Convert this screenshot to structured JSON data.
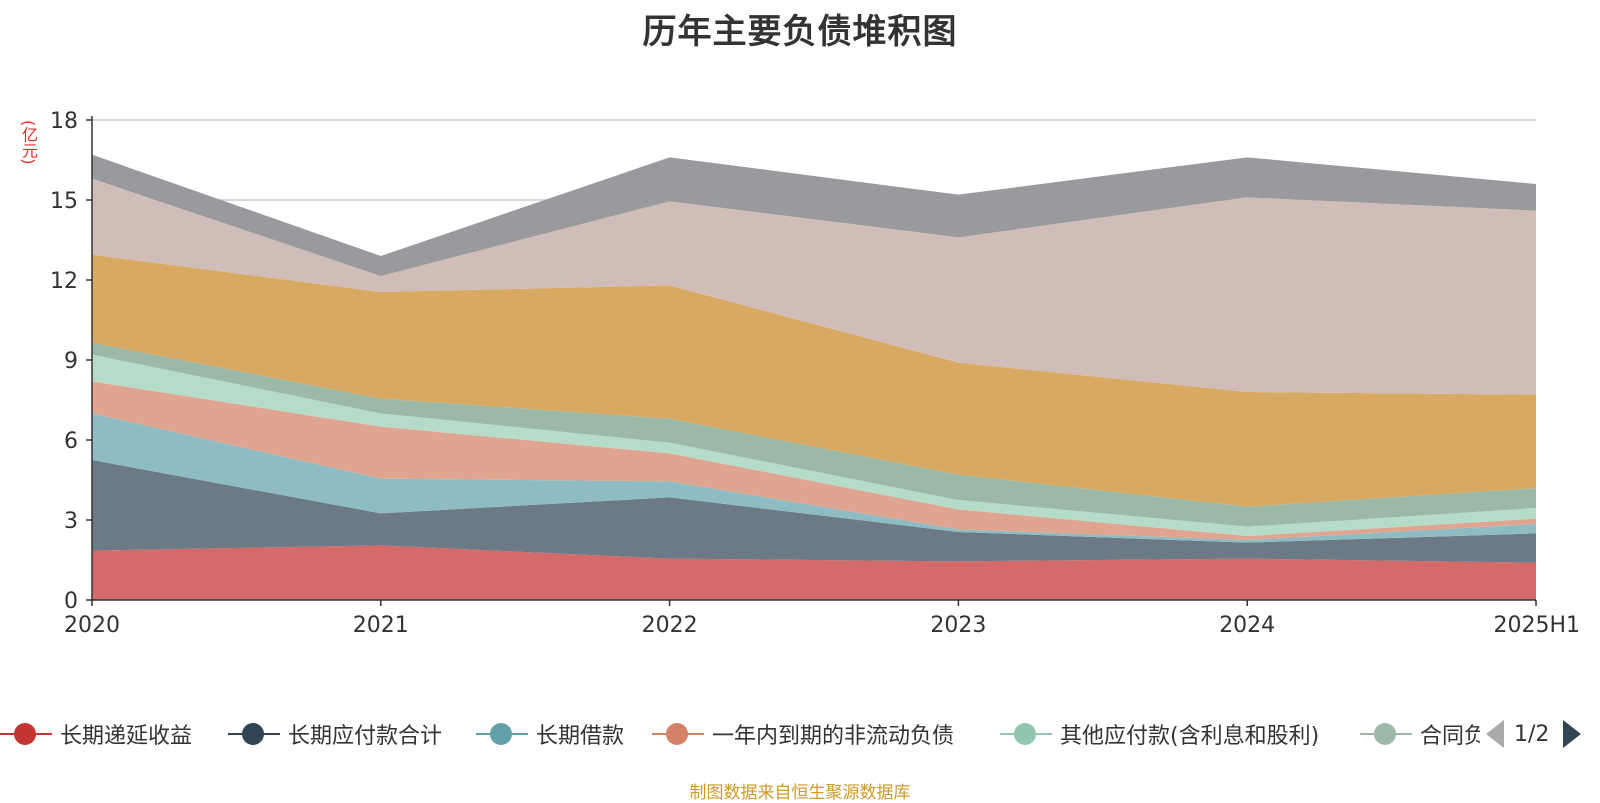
{
  "title": "历年主要负债堆积图",
  "unit_label": "(亿元)",
  "source": "制图数据来自恒生聚源数据库",
  "legend_page": "1/2",
  "chart_data": {
    "type": "area",
    "stacked": true,
    "title": "历年主要负债堆积图",
    "ylabel": "(亿元)",
    "xlabel": "",
    "x": [
      "2020",
      "2021",
      "2022",
      "2023",
      "2024",
      "2025H1"
    ],
    "ylim": [
      0,
      18
    ],
    "yticks": [
      0,
      3,
      6,
      9,
      12,
      15,
      18
    ],
    "grid": true,
    "legend_position": "bottom",
    "series": [
      {
        "name": "长期递延收益",
        "color": "#d46a6a",
        "legend_color": "#c23531",
        "values": [
          1.85,
          2.05,
          1.55,
          1.45,
          1.55,
          1.4
        ]
      },
      {
        "name": "长期应付款合计",
        "color": "#6c7a86",
        "legend_color": "#2f4554",
        "values": [
          3.4,
          1.2,
          2.3,
          1.1,
          0.6,
          1.1
        ]
      },
      {
        "name": "长期借款",
        "color": "#8fbcc3",
        "legend_color": "#61a0a8",
        "values": [
          1.75,
          1.3,
          0.6,
          0.1,
          0.1,
          0.35
        ]
      },
      {
        "name": "一年内到期的非流动负债",
        "color": "#e0a590",
        "legend_color": "#d48265",
        "values": [
          1.2,
          1.95,
          1.05,
          0.75,
          0.15,
          0.2
        ]
      },
      {
        "name": "其他应付款(含利息和股利)",
        "color": "#b5dcc9",
        "legend_color": "#91c7ae",
        "values": [
          1.0,
          0.5,
          0.4,
          0.35,
          0.35,
          0.4
        ]
      },
      {
        "name": "合同负债",
        "color": "#9bb9a6",
        "values": [
          0.45,
          0.55,
          0.9,
          0.95,
          0.75,
          0.75
        ]
      },
      {
        "name": "",
        "color": "#d8a962",
        "values": [
          3.3,
          4.0,
          5.0,
          4.2,
          4.3,
          3.5
        ]
      },
      {
        "name": "",
        "color": "#d0bdb8",
        "values": [
          2.85,
          0.6,
          3.15,
          4.7,
          7.3,
          6.9
        ]
      },
      {
        "name": "",
        "color": "#9a9a9e",
        "values": [
          0.9,
          0.75,
          1.65,
          1.6,
          1.5,
          1.0
        ]
      }
    ]
  }
}
